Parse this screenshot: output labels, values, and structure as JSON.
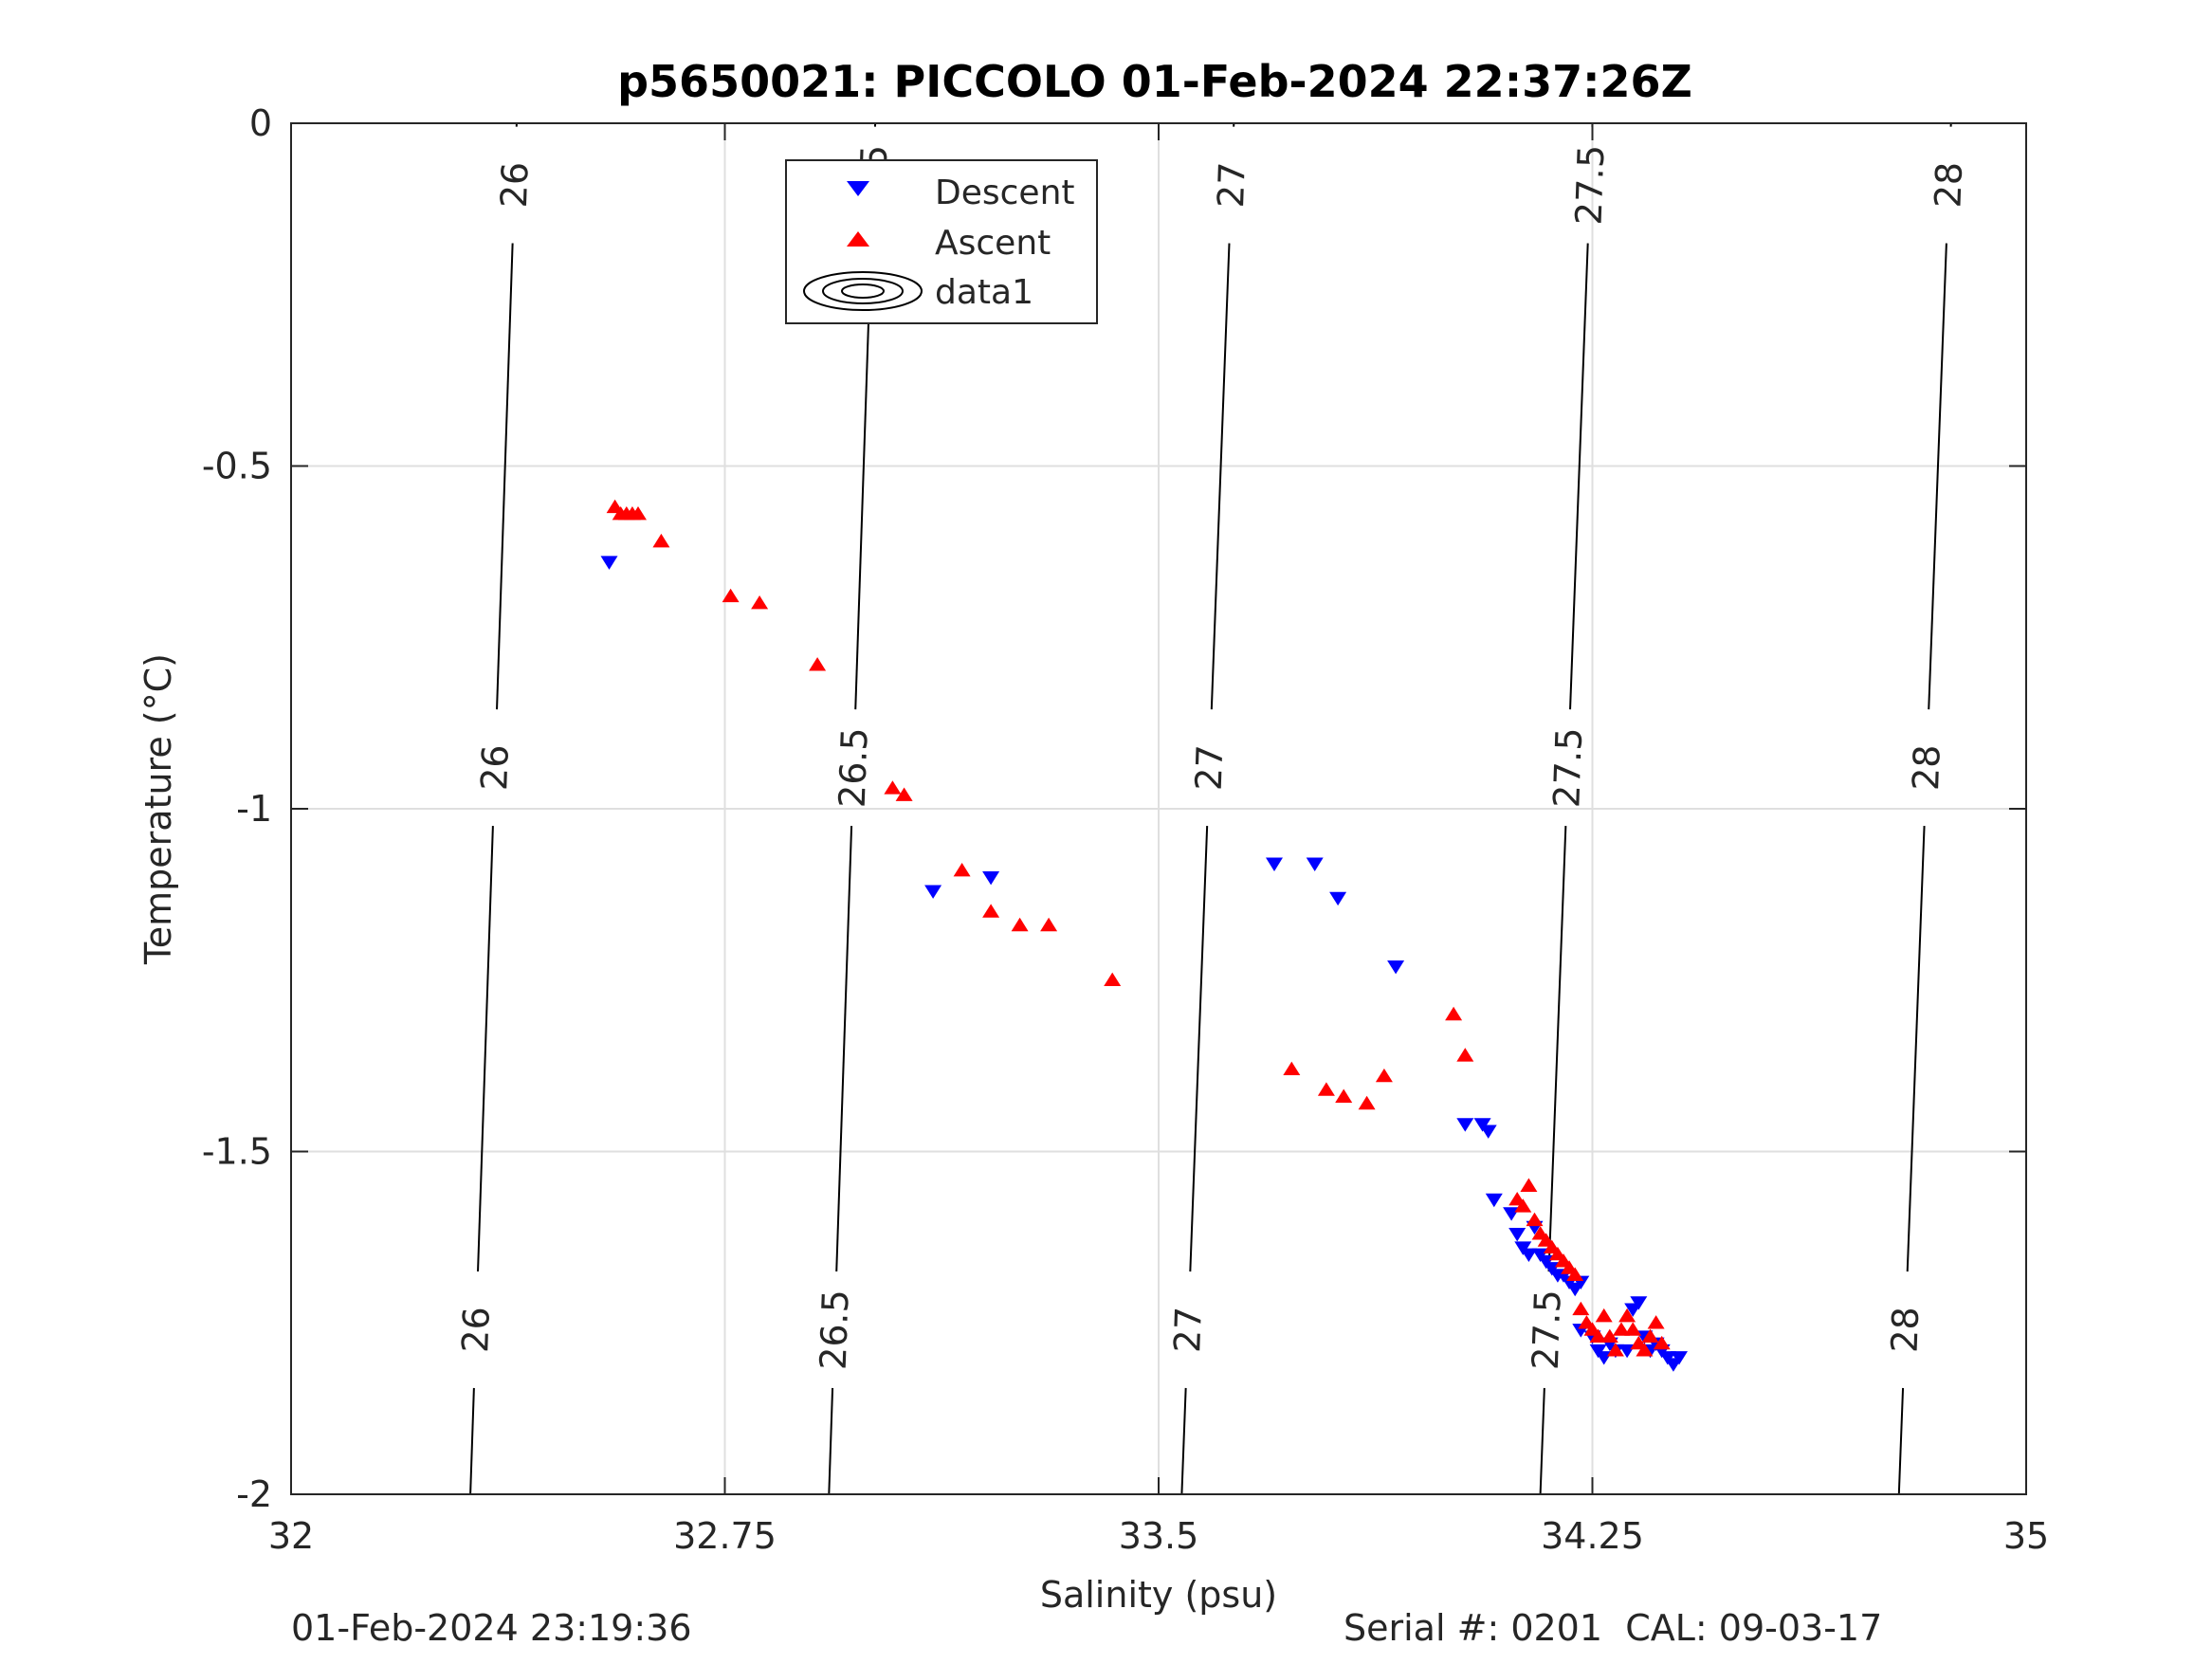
{
  "chart_data": {
    "type": "scatter",
    "title": "p5650021: PICCOLO 01-Feb-2024 22:37:26Z",
    "xlabel": "Salinity (psu)",
    "ylabel": "Temperature (°C)",
    "xlim": [
      32,
      35
    ],
    "ylim": [
      -2,
      0
    ],
    "xticks": [
      32,
      32.75,
      33.5,
      34.25,
      35
    ],
    "xtick_labels": [
      "32",
      "32.75",
      "33.5",
      "34.25",
      "35"
    ],
    "yticks": [
      0,
      -0.5,
      -1,
      -1.5,
      -2
    ],
    "ytick_labels": [
      "0",
      "-0.5",
      "-1",
      "-1.5",
      "-2"
    ],
    "grid": true,
    "legend_position": "top-center",
    "legend": [
      {
        "label": "Descent",
        "marker": "triangle-down",
        "color": "#0000ff"
      },
      {
        "label": "Ascent",
        "marker": "triangle-up",
        "color": "#ff0000"
      },
      {
        "label": "data1",
        "marker": "contour",
        "color": "#000000"
      }
    ],
    "contours": [
      {
        "level": "26",
        "x_top": 32.39,
        "x_bottom": 32.31
      },
      {
        "level": "26.5",
        "x_top": 33.01,
        "x_bottom": 32.93
      },
      {
        "level": "27",
        "x_top": 33.63,
        "x_bottom": 33.54
      },
      {
        "level": "27.5",
        "x_top": 34.25,
        "x_bottom": 34.16
      },
      {
        "level": "28",
        "x_top": 34.87,
        "x_bottom": 34.78
      }
    ],
    "contour_label_temps": [
      -0.09,
      -0.94,
      -1.76
    ],
    "series": [
      {
        "name": "Descent",
        "color": "#0000ff",
        "marker": "triangle-down",
        "points": [
          [
            32.55,
            -0.64
          ],
          [
            33.11,
            -1.12
          ],
          [
            33.21,
            -1.1
          ],
          [
            33.7,
            -1.08
          ],
          [
            33.77,
            -1.08
          ],
          [
            33.81,
            -1.13
          ],
          [
            33.91,
            -1.23
          ],
          [
            34.03,
            -1.46
          ],
          [
            34.06,
            -1.46
          ],
          [
            34.07,
            -1.47
          ],
          [
            34.08,
            -1.57
          ],
          [
            34.11,
            -1.59
          ],
          [
            34.12,
            -1.62
          ],
          [
            34.13,
            -1.64
          ],
          [
            34.14,
            -1.65
          ],
          [
            34.15,
            -1.61
          ],
          [
            34.16,
            -1.65
          ],
          [
            34.17,
            -1.66
          ],
          [
            34.18,
            -1.67
          ],
          [
            34.19,
            -1.68
          ],
          [
            34.2,
            -1.68
          ],
          [
            34.21,
            -1.69
          ],
          [
            34.22,
            -1.7
          ],
          [
            34.23,
            -1.69
          ],
          [
            34.23,
            -1.76
          ],
          [
            34.25,
            -1.77
          ],
          [
            34.26,
            -1.79
          ],
          [
            34.27,
            -1.8
          ],
          [
            34.28,
            -1.78
          ],
          [
            34.29,
            -1.79
          ],
          [
            34.31,
            -1.79
          ],
          [
            34.32,
            -1.73
          ],
          [
            34.33,
            -1.72
          ],
          [
            34.34,
            -1.77
          ],
          [
            34.35,
            -1.79
          ],
          [
            34.36,
            -1.78
          ],
          [
            34.37,
            -1.79
          ],
          [
            34.38,
            -1.8
          ],
          [
            34.39,
            -1.81
          ],
          [
            34.4,
            -1.8
          ]
        ]
      },
      {
        "name": "Ascent",
        "color": "#ff0000",
        "marker": "triangle-up",
        "points": [
          [
            32.56,
            -0.56
          ],
          [
            32.57,
            -0.57
          ],
          [
            32.58,
            -0.57
          ],
          [
            32.59,
            -0.57
          ],
          [
            32.6,
            -0.57
          ],
          [
            32.64,
            -0.61
          ],
          [
            32.76,
            -0.69
          ],
          [
            32.81,
            -0.7
          ],
          [
            32.91,
            -0.79
          ],
          [
            33.04,
            -0.97
          ],
          [
            33.06,
            -0.98
          ],
          [
            33.16,
            -1.09
          ],
          [
            33.21,
            -1.15
          ],
          [
            33.26,
            -1.17
          ],
          [
            33.31,
            -1.17
          ],
          [
            33.42,
            -1.25
          ],
          [
            33.73,
            -1.38
          ],
          [
            33.79,
            -1.41
          ],
          [
            33.82,
            -1.42
          ],
          [
            33.86,
            -1.43
          ],
          [
            33.89,
            -1.39
          ],
          [
            34.01,
            -1.3
          ],
          [
            34.03,
            -1.36
          ],
          [
            34.12,
            -1.57
          ],
          [
            34.13,
            -1.58
          ],
          [
            34.14,
            -1.55
          ],
          [
            34.15,
            -1.6
          ],
          [
            34.16,
            -1.62
          ],
          [
            34.17,
            -1.63
          ],
          [
            34.18,
            -1.64
          ],
          [
            34.19,
            -1.65
          ],
          [
            34.2,
            -1.66
          ],
          [
            34.21,
            -1.67
          ],
          [
            34.22,
            -1.68
          ],
          [
            34.23,
            -1.73
          ],
          [
            34.24,
            -1.75
          ],
          [
            34.25,
            -1.76
          ],
          [
            34.26,
            -1.77
          ],
          [
            34.27,
            -1.74
          ],
          [
            34.28,
            -1.77
          ],
          [
            34.29,
            -1.79
          ],
          [
            34.3,
            -1.76
          ],
          [
            34.31,
            -1.74
          ],
          [
            34.32,
            -1.76
          ],
          [
            34.33,
            -1.78
          ],
          [
            34.34,
            -1.79
          ],
          [
            34.35,
            -1.77
          ],
          [
            34.36,
            -1.75
          ],
          [
            34.37,
            -1.78
          ]
        ]
      }
    ]
  },
  "footer": {
    "left": "01-Feb-2024 23:19:36",
    "right": "Serial #: 0201  CAL: 09-03-17"
  }
}
